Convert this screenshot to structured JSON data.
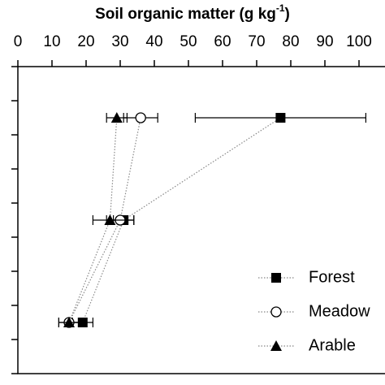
{
  "chart_data": {
    "type": "line",
    "title": "Soil organic matter (g kg",
    "title_superscript": "-1",
    "title_end": ")",
    "xlim": [
      0,
      100
    ],
    "xticks": [
      0,
      10,
      20,
      30,
      40,
      50,
      60,
      70,
      80,
      90,
      100
    ],
    "ylim": [
      0,
      9
    ],
    "yticks": [
      0,
      1,
      2,
      3,
      4,
      5,
      6,
      7,
      8,
      9
    ],
    "y_reversed": true,
    "y": [
      1.5,
      4.5,
      7.5
    ],
    "series": [
      {
        "name": "Forest",
        "marker": "square",
        "color": "#000000",
        "values": [
          77,
          31,
          19
        ],
        "errors": [
          25,
          3,
          3
        ]
      },
      {
        "name": "Meadow",
        "marker": "circle",
        "color": "#000000",
        "values": [
          36,
          30,
          15
        ],
        "errors": [
          5,
          4,
          3
        ]
      },
      {
        "name": "Arable",
        "marker": "triangle",
        "color": "#000000",
        "values": [
          29,
          27,
          15
        ],
        "errors": [
          3,
          5,
          3
        ]
      }
    ],
    "legend": "lower right"
  }
}
